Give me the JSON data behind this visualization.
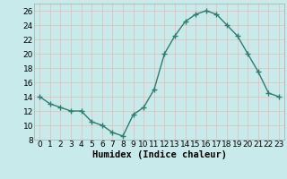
{
  "x": [
    0,
    1,
    2,
    3,
    4,
    5,
    6,
    7,
    8,
    9,
    10,
    11,
    12,
    13,
    14,
    15,
    16,
    17,
    18,
    19,
    20,
    21,
    22,
    23
  ],
  "y": [
    14,
    13,
    12.5,
    12,
    12,
    10.5,
    10,
    9,
    8.5,
    11.5,
    12.5,
    15,
    20,
    22.5,
    24.5,
    25.5,
    26,
    25.5,
    24,
    22.5,
    20,
    17.5,
    14.5,
    14
  ],
  "line_color": "#2e7d6e",
  "marker": "D",
  "marker_size": 2.2,
  "line_width": 1.0,
  "bg_color": "#c8eaea",
  "grid_color": "#e8b8b8",
  "xlabel": "Humidex (Indice chaleur)",
  "ylim": [
    8,
    27
  ],
  "xlim": [
    -0.5,
    23.5
  ],
  "yticks": [
    8,
    10,
    12,
    14,
    16,
    18,
    20,
    22,
    24,
    26
  ],
  "xticks": [
    0,
    1,
    2,
    3,
    4,
    5,
    6,
    7,
    8,
    9,
    10,
    11,
    12,
    13,
    14,
    15,
    16,
    17,
    18,
    19,
    20,
    21,
    22,
    23
  ],
  "tick_fontsize": 6.5,
  "xlabel_fontsize": 7.5
}
